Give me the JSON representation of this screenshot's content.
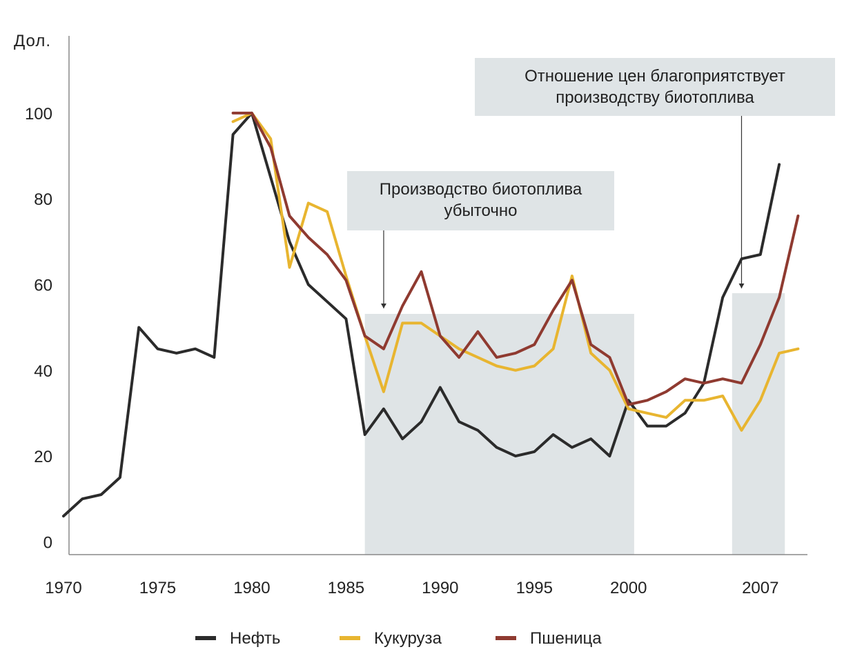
{
  "chart_data": {
    "type": "line",
    "title": "",
    "ylabel": "Дол.",
    "xlabel": "",
    "x": [
      1970,
      1971,
      1972,
      1973,
      1974,
      1975,
      1976,
      1977,
      1978,
      1979,
      1980,
      1981,
      1982,
      1983,
      1984,
      1985,
      1986,
      1987,
      1988,
      1989,
      1990,
      1991,
      1992,
      1993,
      1994,
      1995,
      1996,
      1997,
      1998,
      1999,
      2000,
      2001,
      2002,
      2003,
      2004,
      2005,
      2006,
      2007,
      2008,
      2009
    ],
    "xlim": [
      1970,
      2009.5
    ],
    "ylim": [
      -3,
      118
    ],
    "xticks": [
      {
        "value": 1970,
        "label": "1970"
      },
      {
        "value": 1975,
        "label": "1975"
      },
      {
        "value": 1980,
        "label": "1980"
      },
      {
        "value": 1985,
        "label": "1985"
      },
      {
        "value": 1990,
        "label": "1990"
      },
      {
        "value": 1995,
        "label": "1995"
      },
      {
        "value": 2000,
        "label": "2000"
      },
      {
        "value": 2007,
        "label": "2007"
      }
    ],
    "yticks": [
      {
        "value": 0,
        "label": "0"
      },
      {
        "value": 20,
        "label": "20"
      },
      {
        "value": 40,
        "label": "40"
      },
      {
        "value": 60,
        "label": "60"
      },
      {
        "value": 80,
        "label": "80"
      },
      {
        "value": 100,
        "label": "100"
      }
    ],
    "series": [
      {
        "name": "Нефть",
        "color": "#2b2b2b",
        "values": [
          6,
          10,
          11,
          15,
          50,
          45,
          44,
          45,
          43,
          95,
          100,
          85,
          70,
          60,
          56,
          52,
          25,
          31,
          24,
          28,
          36,
          28,
          26,
          22,
          20,
          21,
          25,
          22,
          24,
          20,
          33,
          27,
          27,
          30,
          37,
          57,
          66,
          67,
          88,
          null
        ]
      },
      {
        "name": "Кукуруза",
        "color": "#e8b530",
        "values": [
          null,
          null,
          null,
          null,
          null,
          null,
          null,
          null,
          null,
          98,
          100,
          94,
          64,
          79,
          77,
          62,
          48,
          35,
          51,
          51,
          48,
          45,
          43,
          41,
          40,
          41,
          45,
          62,
          44,
          40,
          31,
          30,
          29,
          33,
          33,
          34,
          26,
          33,
          44,
          45
        ]
      },
      {
        "name": "Пшеница",
        "color": "#8f3a30",
        "values": [
          null,
          null,
          null,
          null,
          null,
          null,
          null,
          null,
          null,
          100,
          100,
          92,
          76,
          71,
          67,
          61,
          48,
          45,
          55,
          63,
          48,
          43,
          49,
          43,
          44,
          46,
          54,
          61,
          46,
          43,
          32,
          33,
          35,
          38,
          37,
          38,
          37,
          46,
          57,
          76
        ]
      }
    ],
    "annotations": [
      {
        "lines": [
          "Производство биотоплива",
          "убыточно"
        ],
        "points_to": 1987
      },
      {
        "lines": [
          "Отношение цен благоприятствует",
          "производству биотоплива"
        ],
        "points_to": 2006
      }
    ],
    "shaded_ranges": [
      [
        1986,
        2000.3
      ],
      [
        2005.5,
        2008.3
      ]
    ],
    "legend_position": "bottom"
  }
}
